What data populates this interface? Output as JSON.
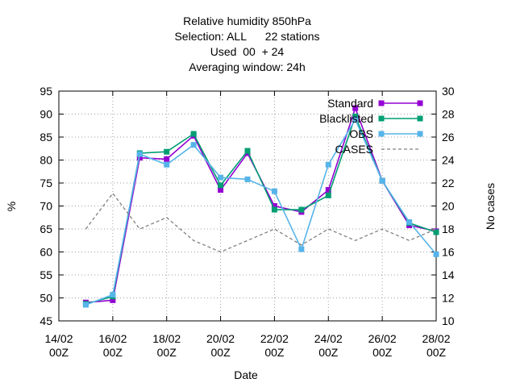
{
  "chart_data": {
    "type": "line",
    "title": [
      "Relative humidity 850hPa",
      "Selection: ALL      22 stations",
      "Used  00  + 24",
      "Averaging window: 24h"
    ],
    "xlabel": "Date",
    "ylabel": "%",
    "y2label": "No cases",
    "x_ticks": [
      {
        "day": 14,
        "line1": "14/02",
        "line2": "00Z"
      },
      {
        "day": 16,
        "line1": "16/02",
        "line2": "00Z"
      },
      {
        "day": 18,
        "line1": "18/02",
        "line2": "00Z"
      },
      {
        "day": 20,
        "line1": "20/02",
        "line2": "00Z"
      },
      {
        "day": 22,
        "line1": "22/02",
        "line2": "00Z"
      },
      {
        "day": 24,
        "line1": "24/02",
        "line2": "00Z"
      },
      {
        "day": 26,
        "line1": "26/02",
        "line2": "00Z"
      },
      {
        "day": 28,
        "line1": "28/02",
        "line2": "00Z"
      }
    ],
    "xlim": [
      14,
      28
    ],
    "ylim": [
      45,
      95
    ],
    "y_ticks": [
      45,
      50,
      55,
      60,
      65,
      70,
      75,
      80,
      85,
      90,
      95
    ],
    "y2lim": [
      10,
      30
    ],
    "y2_ticks": [
      10,
      12,
      14,
      16,
      18,
      20,
      22,
      24,
      26,
      28,
      30
    ],
    "grid": true,
    "legend_position": "top-right",
    "x": [
      15,
      16,
      17,
      18,
      19,
      20,
      21,
      22,
      23,
      24,
      25,
      26,
      27,
      28
    ],
    "series": [
      {
        "name": "Standard",
        "color": "#9400d3",
        "marker": "filled-square",
        "axis": "y",
        "values": [
          49.0,
          49.5,
          80.5,
          80.2,
          85.3,
          73.5,
          81.5,
          70.0,
          68.7,
          73.5,
          91.3,
          75.5,
          65.8,
          64.5
        ]
      },
      {
        "name": "Blacklisted",
        "color": "#009e73",
        "marker": "filled-square",
        "axis": "y",
        "values": [
          48.7,
          50.3,
          81.5,
          81.8,
          85.7,
          74.5,
          82.0,
          69.2,
          69.2,
          72.3,
          89.5,
          75.5,
          66.3,
          64.3
        ]
      },
      {
        "name": "OBS",
        "color": "#56b4e9",
        "marker": "filled-square",
        "axis": "y",
        "values": [
          48.5,
          50.7,
          81.3,
          79.0,
          83.3,
          76.2,
          75.8,
          73.2,
          60.6,
          79.0,
          88.8,
          75.5,
          66.5,
          59.5
        ]
      },
      {
        "name": "CASES",
        "color": "#808080",
        "dash": true,
        "axis": "y2",
        "values": [
          18.0,
          21.1,
          18.0,
          19.0,
          17.0,
          16.0,
          17.0,
          18.0,
          16.6,
          18.0,
          17.0,
          18.0,
          17.0,
          18.0
        ]
      }
    ]
  }
}
